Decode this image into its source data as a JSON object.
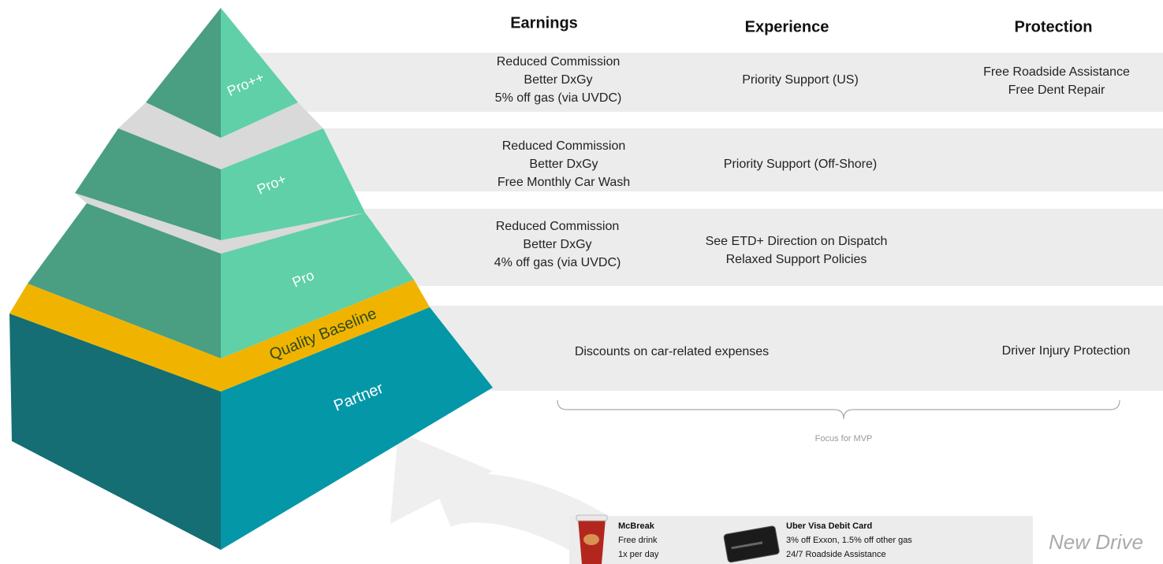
{
  "columns": [
    "Earnings",
    "Experience",
    "Protection"
  ],
  "tiers": [
    {
      "label": "Pro++",
      "earnings": [
        "Reduced Commission",
        "Better DxGy",
        "5% off gas (via UVDC)"
      ],
      "experience": [
        "Priority Support (US)"
      ],
      "protection": [
        "Free Roadside Assistance",
        "Free Dent Repair"
      ]
    },
    {
      "label": "Pro+",
      "earnings": [
        "Reduced Commission",
        "Better DxGy",
        "Free Monthly Car Wash"
      ],
      "experience": [
        "Priority Support (Off-Shore)"
      ]
    },
    {
      "label": "Pro",
      "earnings": [
        "Reduced Commission",
        "Better DxGy",
        "4% off gas (via UVDC)"
      ],
      "experience": [
        "See ETD+ Direction on Dispatch",
        "Relaxed Support Policies"
      ]
    },
    {
      "label": "Quality Baseline"
    },
    {
      "label": "Partner",
      "earnings": [
        "Discounts on car-related expenses"
      ],
      "protection": [
        "Driver Injury Protection"
      ]
    }
  ],
  "bracket_label": "Focus for MVP",
  "perks": [
    {
      "title": "McBreak",
      "lines": [
        "Free drink",
        "1x per day"
      ]
    },
    {
      "title": "Uber Visa Debit Card",
      "lines": [
        "3% off Exxon, 1.5% off other gas",
        "24/7 Roadside Assistance"
      ]
    }
  ],
  "new_driver_label": "New Drive"
}
